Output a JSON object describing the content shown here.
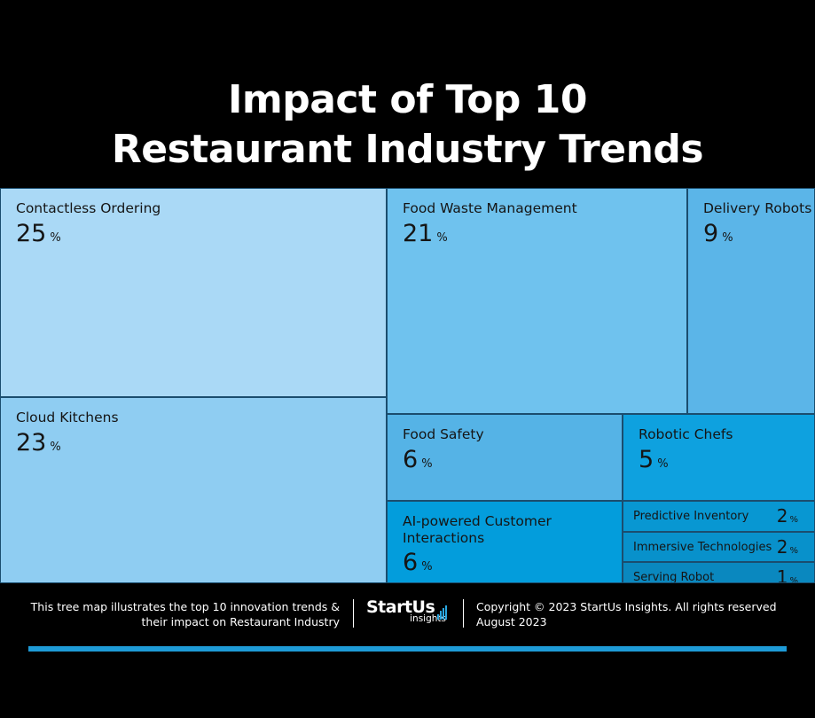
{
  "title_line1": "Impact of Top 10",
  "title_line2": "Restaurant Industry Trends",
  "chart_data": {
    "type": "treemap",
    "title": "Impact of Top 10 Restaurant Industry Trends",
    "unit": "%",
    "items": [
      {
        "label": "Contactless Ordering",
        "value": 25,
        "color": "#aad9f6"
      },
      {
        "label": "Cloud Kitchens",
        "value": 23,
        "color": "#8fcdf2"
      },
      {
        "label": "Food Waste Management",
        "value": 21,
        "color": "#6fc2ee"
      },
      {
        "label": "Delivery Robots",
        "value": 9,
        "color": "#5bb5e8"
      },
      {
        "label": "Food Safety",
        "value": 6,
        "color": "#55b3e6"
      },
      {
        "label": "AI-powered Customer Interactions",
        "value": 6,
        "color": "#039ddc"
      },
      {
        "label": "Robotic Chefs",
        "value": 5,
        "color": "#0ea1df"
      },
      {
        "label": "Predictive Inventory",
        "value": 2,
        "color": "#0897d2"
      },
      {
        "label": "Immersive Technologies",
        "value": 2,
        "color": "#0891cb"
      },
      {
        "label": "Serving Robot",
        "value": 1,
        "color": "#0a88bf"
      }
    ]
  },
  "footer": {
    "desc_line1": "This tree map illustrates the top 10 innovation trends &",
    "desc_line2": "their impact on Restaurant Industry",
    "logo_main": "StartUs",
    "logo_sub": "insights",
    "copyright": "Copyright © 2023 StartUs Insights. All rights reserved",
    "date": "August 2023"
  }
}
